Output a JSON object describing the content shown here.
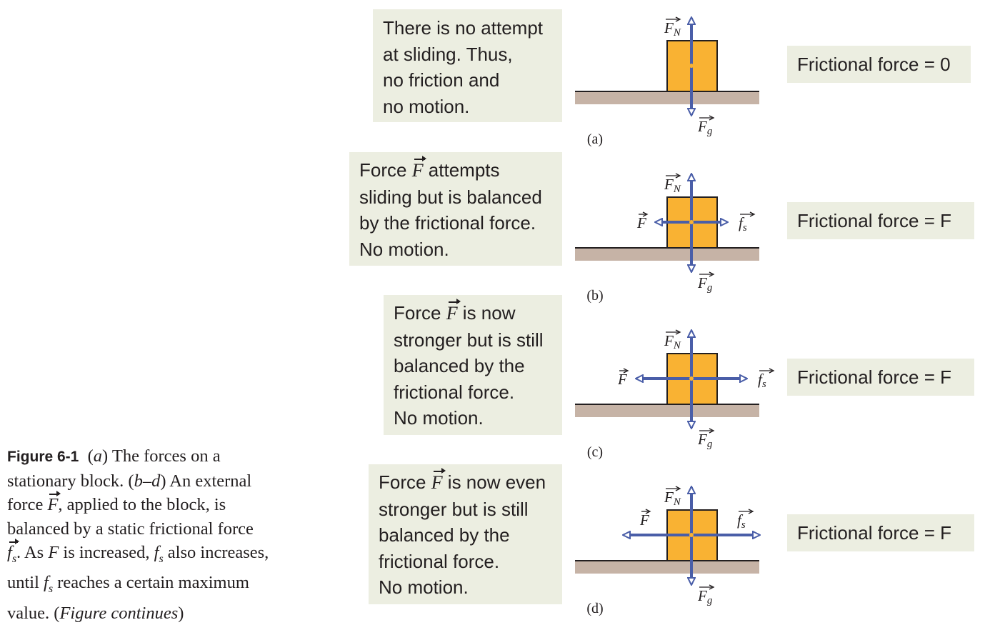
{
  "panels": [
    {
      "letter": "(a)",
      "lines": [
        "There is no attempt",
        "at sliding. Thus,",
        "no friction and",
        "no motion."
      ],
      "result": "Frictional force = 0",
      "force_arrow": null
    },
    {
      "letter": "(b)",
      "lines": [
        "Force {F} attempts",
        "sliding but is balanced",
        "by the frictional force.",
        "No motion."
      ],
      "result": "Frictional force = F",
      "force_arrow": "short"
    },
    {
      "letter": "(c)",
      "lines": [
        "Force {F} is now",
        "stronger but is still",
        "balanced by the",
        "frictional force.",
        "No motion."
      ],
      "result": "Frictional force = F",
      "force_arrow": "medium"
    },
    {
      "letter": "(d)",
      "lines": [
        "Force {F} is now even",
        "stronger but is still",
        "balanced by the",
        "frictional force.",
        "No motion."
      ],
      "result": "Frictional force = F",
      "force_arrow": "long"
    }
  ],
  "vector_labels": {
    "normal": "F",
    "normal_sub": "N",
    "gravity": "F",
    "gravity_sub": "g",
    "applied": "F",
    "friction": "f",
    "friction_sub": "s",
    "inline_force": "F"
  },
  "caption": {
    "figure_label": "Figure 6-1",
    "lines": [
      "(a) The forces on a",
      "stationary block. (b–d) An external",
      "force F, applied to the block, is",
      "balanced by a static frictional force",
      "fs. As F is increased, fs also increases,",
      "until fs reaches a certain maximum",
      "value. (Figure continues)"
    ]
  },
  "colors": {
    "block": "#f9b233",
    "block_outline": "#231f20",
    "floor": "#c6b3a6",
    "arrow": "#4a5ea8",
    "box_bg": "#eceee1",
    "text": "#231f20"
  }
}
